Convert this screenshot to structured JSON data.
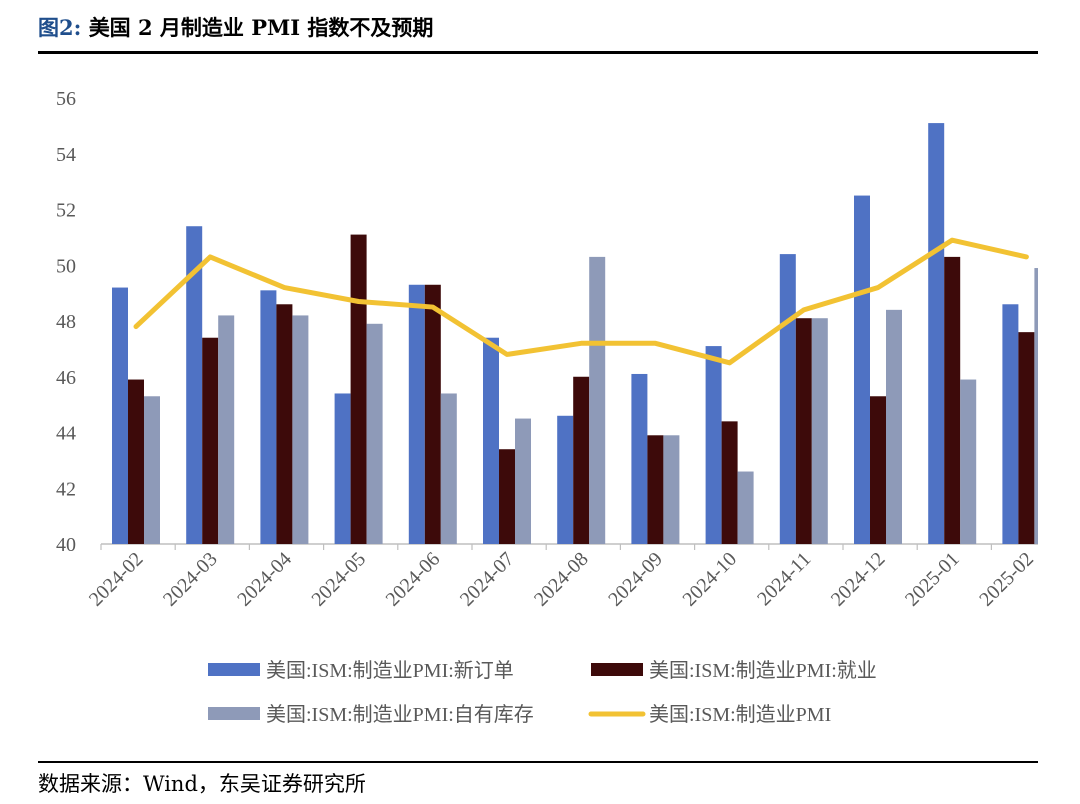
{
  "header": {
    "figure_label": "图2:",
    "title": "美国 2 月制造业 PMI 指数不及预期"
  },
  "footer": {
    "source": "数据来源：Wind，东吴证券研究所"
  },
  "colors": {
    "new_orders": "#4f72c4",
    "employment": "#3d0a0a",
    "inventory": "#8e9ab8",
    "pmi": "#f2c233",
    "axis": "#bfbfbf",
    "tick_text": "#595959"
  },
  "chart_data": {
    "type": "bar",
    "categories": [
      "2024-02",
      "2024-03",
      "2024-04",
      "2024-05",
      "2024-06",
      "2024-07",
      "2024-08",
      "2024-09",
      "2024-10",
      "2024-11",
      "2024-12",
      "2025-01",
      "2025-02"
    ],
    "ylim": [
      40,
      56
    ],
    "yticks": [
      40,
      42,
      44,
      46,
      48,
      50,
      52,
      54,
      56
    ],
    "grid": false,
    "legend_position": "bottom",
    "series": [
      {
        "name": "美国:ISM:制造业PMI:新订单",
        "type": "bar",
        "values": [
          49.2,
          51.4,
          49.1,
          45.4,
          49.3,
          47.4,
          44.6,
          46.1,
          47.1,
          50.4,
          52.5,
          55.1,
          48.6
        ]
      },
      {
        "name": "美国:ISM:制造业PMI:就业",
        "type": "bar",
        "values": [
          45.9,
          47.4,
          48.6,
          51.1,
          49.3,
          43.4,
          46.0,
          43.9,
          44.4,
          48.1,
          45.3,
          50.3,
          47.6
        ]
      },
      {
        "name": "美国:ISM:制造业PMI:自有库存",
        "type": "bar",
        "values": [
          45.3,
          48.2,
          48.2,
          47.9,
          45.4,
          44.5,
          50.3,
          43.9,
          42.6,
          48.1,
          48.4,
          45.9,
          49.9
        ]
      },
      {
        "name": "美国:ISM:制造业PMI",
        "type": "line",
        "values": [
          47.8,
          50.3,
          49.2,
          48.7,
          48.5,
          46.8,
          47.2,
          47.2,
          46.5,
          48.4,
          49.2,
          50.9,
          50.3
        ]
      }
    ]
  }
}
